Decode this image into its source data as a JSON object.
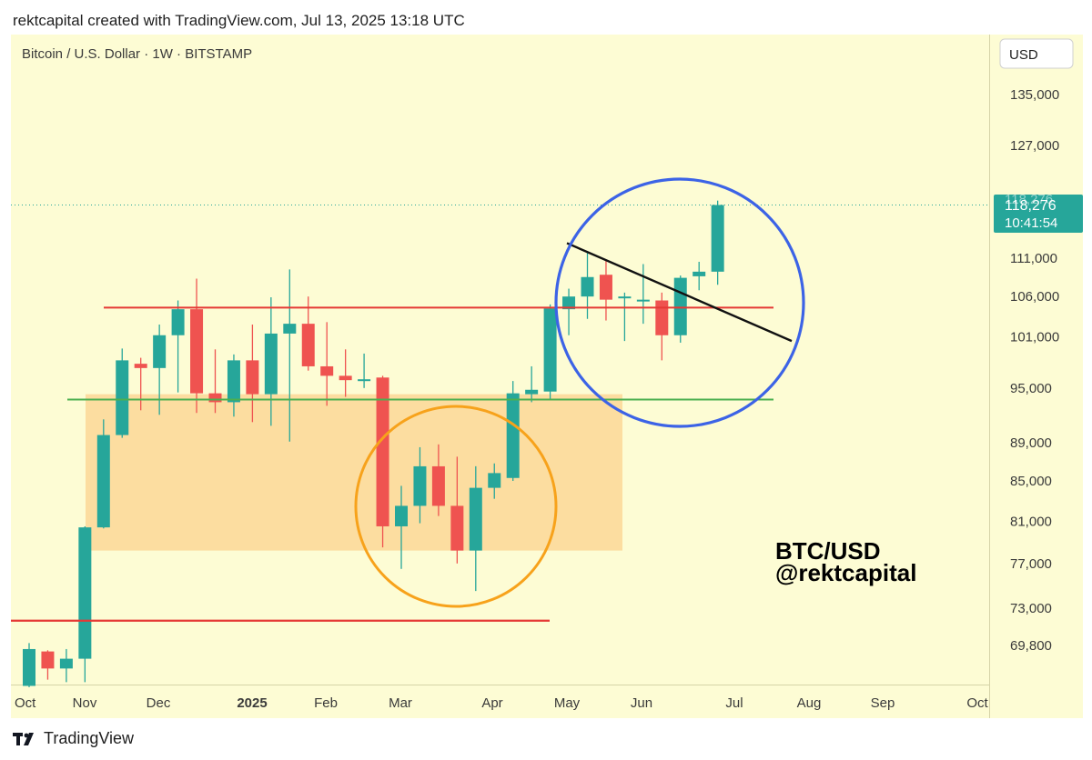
{
  "header": {
    "text": "rektcapital created with TradingView.com, Jul 13, 2025 13:18 UTC"
  },
  "symbol_line": "Bitcoin / U.S. Dollar · 1W · BITSTAMP",
  "currency_button": "USD",
  "watermark": {
    "line1": "BTC/USD",
    "line2": "@rektcapital"
  },
  "price_label": {
    "price": "118,276",
    "countdown": "10:41:54",
    "hidden_top": "118,276"
  },
  "footer": {
    "brand": "TradingView",
    "logo_icon": "tradingview-logo-icon"
  },
  "colors": {
    "background": "#fdfcd4",
    "up": "#26a69a",
    "down": "#ef5350",
    "zone_fill": "#fcd99a",
    "resistance": "#e53935",
    "support": "#4caf50",
    "orange_circle": "#f7a21b",
    "blue_circle": "#3c63e6",
    "trendline": "#111111"
  },
  "chart_data": {
    "type": "candlestick",
    "symbol": "Bitcoin / U.S. Dollar",
    "interval": "1W",
    "exchange": "BITSTAMP",
    "y_ticks": [
      135000,
      127000,
      111000,
      106000,
      101000,
      95000,
      89000,
      85000,
      81000,
      77000,
      73000,
      69800
    ],
    "y_tick_labels": [
      "135,000",
      "127,000",
      "111,000",
      "106,000",
      "101,000",
      "95,000",
      "89,000",
      "85,000",
      "81,000",
      "77,000",
      "73,000",
      "69,800"
    ],
    "x_labels": [
      "Oct",
      "Nov",
      "Dec",
      "2025",
      "Feb",
      "Mar",
      "Apr",
      "May",
      "Jun",
      "Jul",
      "Aug",
      "Sep",
      "Oct"
    ],
    "last_price": 118276,
    "candles": [
      {
        "o": 66500,
        "h": 70000,
        "l": 66400,
        "c": 69500
      },
      {
        "o": 69300,
        "h": 69400,
        "l": 67000,
        "c": 67900
      },
      {
        "o": 67900,
        "h": 69500,
        "l": 66800,
        "c": 68700
      },
      {
        "o": 68700,
        "h": 80500,
        "l": 66800,
        "c": 80400
      },
      {
        "o": 80400,
        "h": 91500,
        "l": 80300,
        "c": 89800
      },
      {
        "o": 89800,
        "h": 99600,
        "l": 89500,
        "c": 98200
      },
      {
        "o": 97800,
        "h": 98500,
        "l": 92500,
        "c": 97300
      },
      {
        "o": 97300,
        "h": 102500,
        "l": 92000,
        "c": 101200
      },
      {
        "o": 101200,
        "h": 105500,
        "l": 94500,
        "c": 104400
      },
      {
        "o": 104400,
        "h": 108300,
        "l": 92200,
        "c": 94400
      },
      {
        "o": 94400,
        "h": 99500,
        "l": 92200,
        "c": 93400
      },
      {
        "o": 93400,
        "h": 98900,
        "l": 91800,
        "c": 98200
      },
      {
        "o": 98200,
        "h": 102500,
        "l": 91200,
        "c": 94300
      },
      {
        "o": 94300,
        "h": 105900,
        "l": 90800,
        "c": 101400
      },
      {
        "o": 101400,
        "h": 109500,
        "l": 89100,
        "c": 102600
      },
      {
        "o": 102600,
        "h": 106000,
        "l": 97000,
        "c": 97500
      },
      {
        "o": 97500,
        "h": 102800,
        "l": 93000,
        "c": 96400
      },
      {
        "o": 96400,
        "h": 99500,
        "l": 94000,
        "c": 95900
      },
      {
        "o": 95800,
        "h": 99000,
        "l": 95000,
        "c": 96000
      },
      {
        "o": 96200,
        "h": 96400,
        "l": 78500,
        "c": 80500
      },
      {
        "o": 80500,
        "h": 84500,
        "l": 76500,
        "c": 82500
      },
      {
        "o": 82500,
        "h": 88500,
        "l": 80800,
        "c": 86500
      },
      {
        "o": 86500,
        "h": 88800,
        "l": 81500,
        "c": 82500
      },
      {
        "o": 82500,
        "h": 87500,
        "l": 77000,
        "c": 78200
      },
      {
        "o": 78200,
        "h": 86500,
        "l": 74500,
        "c": 84300
      },
      {
        "o": 84300,
        "h": 86800,
        "l": 83200,
        "c": 85800
      },
      {
        "o": 85300,
        "h": 95800,
        "l": 85000,
        "c": 94400
      },
      {
        "o": 94300,
        "h": 97500,
        "l": 93400,
        "c": 94800
      },
      {
        "o": 94600,
        "h": 105000,
        "l": 93600,
        "c": 104500
      },
      {
        "o": 104400,
        "h": 107000,
        "l": 101200,
        "c": 106000
      },
      {
        "o": 106000,
        "h": 111900,
        "l": 103200,
        "c": 108500
      },
      {
        "o": 108800,
        "h": 110700,
        "l": 103000,
        "c": 105600
      },
      {
        "o": 105800,
        "h": 106500,
        "l": 100500,
        "c": 106000
      },
      {
        "o": 105500,
        "h": 110200,
        "l": 102600,
        "c": 105600
      },
      {
        "o": 105500,
        "h": 106500,
        "l": 98200,
        "c": 101200
      },
      {
        "o": 101200,
        "h": 108700,
        "l": 100300,
        "c": 108400
      },
      {
        "o": 108600,
        "h": 110500,
        "l": 106800,
        "c": 109200
      },
      {
        "o": 109200,
        "h": 118900,
        "l": 107500,
        "c": 118276
      }
    ],
    "drawings": [
      {
        "type": "horizontal-line",
        "name": "resistance",
        "value": 104600,
        "color": "red"
      },
      {
        "type": "horizontal-line",
        "name": "support",
        "value": 93700,
        "color": "green"
      },
      {
        "type": "horizontal-line",
        "name": "lower-resistance",
        "value": 71900,
        "color": "red"
      },
      {
        "type": "rectangle",
        "name": "range-box",
        "low": 78200,
        "high": 94300
      },
      {
        "type": "trendline",
        "from": 113000,
        "to": 100500
      },
      {
        "type": "ellipse",
        "name": "orange-circle",
        "color": "orange"
      },
      {
        "type": "ellipse",
        "name": "blue-circle",
        "color": "blue"
      }
    ]
  }
}
